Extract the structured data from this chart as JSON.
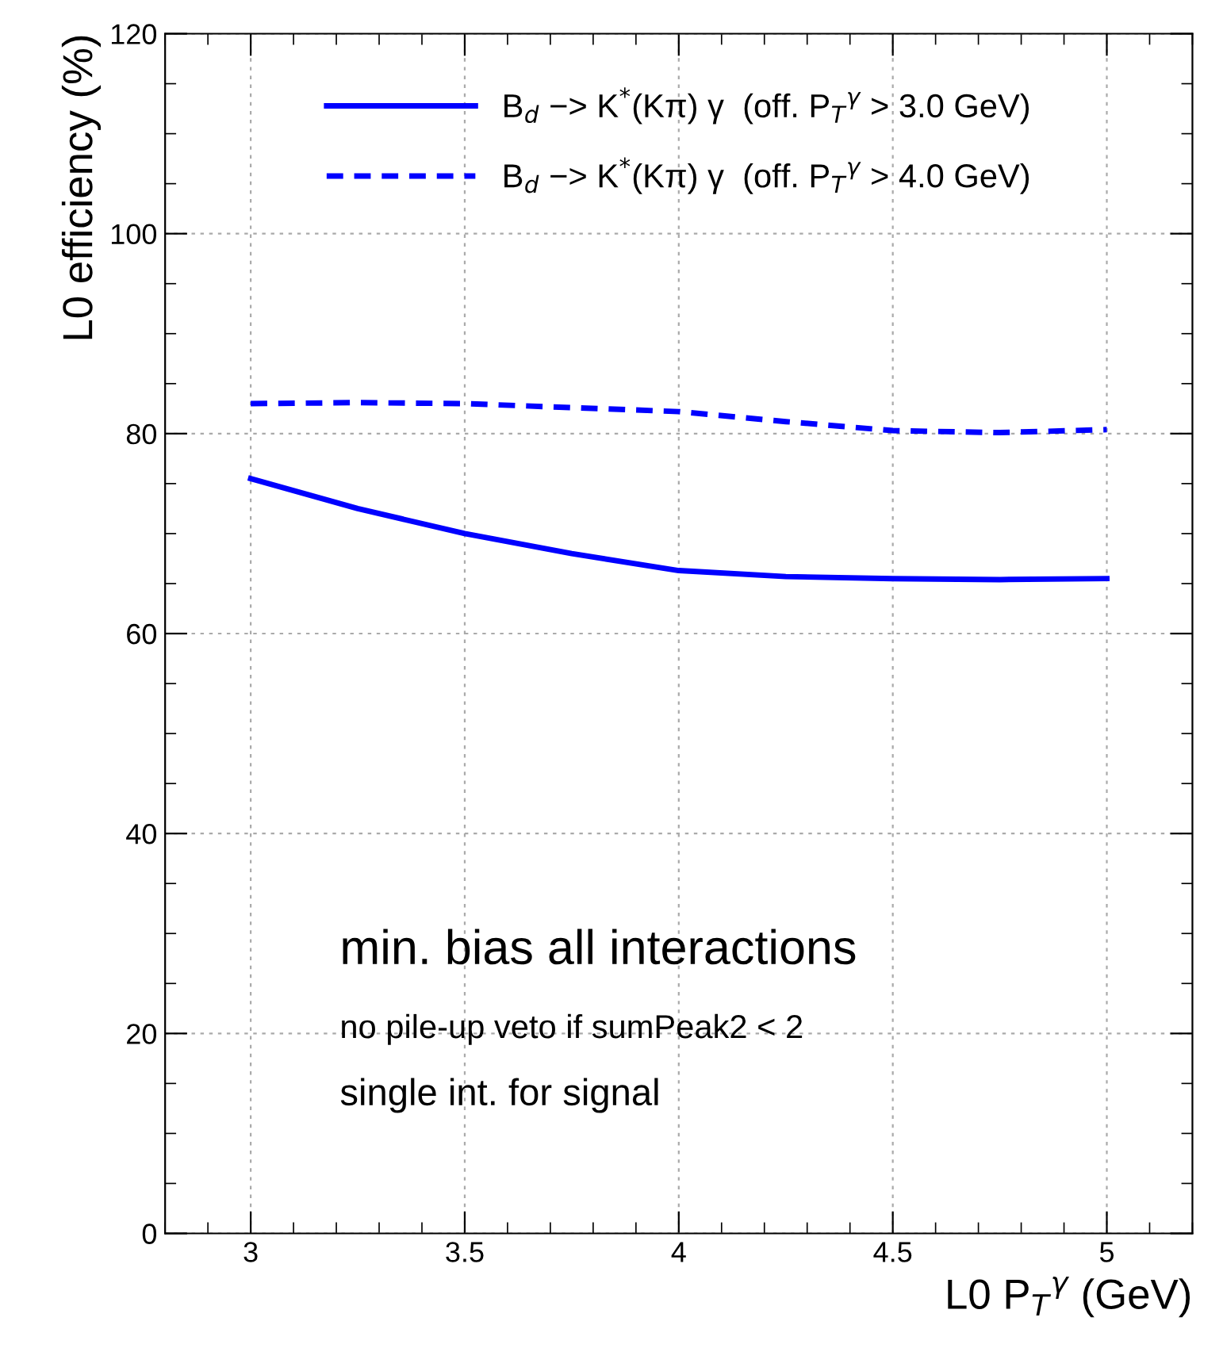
{
  "chart_data": {
    "type": "line",
    "xlabel": "L0 P$_{T}$$^{γ}$ (GeV)",
    "ylabel": "L0 efficiency (%)",
    "x": [
      3,
      3.25,
      3.5,
      3.75,
      4,
      4.25,
      4.5,
      4.75,
      5
    ],
    "series": [
      {
        "name": "B$_{d}$ −> K$^{*}$(Kπ) γ  (off. P$_{T}$$^{γ}$ > 3.0 GeV)",
        "color": "#0000ff",
        "line_style": "solid",
        "values": [
          75.5,
          72.5,
          70,
          68,
          66.3,
          65.7,
          65.5,
          65.4,
          65.5
        ]
      },
      {
        "name": "B$_{d}$ −> K$^{*}$(Kπ) γ  (off. P$_{T}$$^{γ}$ > 4.0 GeV)",
        "color": "#0000ff",
        "line_style": "dashed",
        "values": [
          83,
          83.1,
          83,
          82.6,
          82.2,
          81.2,
          80.3,
          80.1,
          80.4
        ]
      }
    ],
    "xlim": [
      2.8,
      5.2
    ],
    "xticks": [
      3,
      3.5,
      4,
      4.5,
      5
    ],
    "ylim": [
      0,
      120
    ],
    "yticks": [
      0,
      20,
      40,
      60,
      80,
      100,
      120
    ],
    "grid": true,
    "legend": "top",
    "marker": "none",
    "annotations": [
      "min. bias all interactions",
      "no pile-up veto if sumPeak2 < 2",
      "single int. for signal"
    ]
  }
}
